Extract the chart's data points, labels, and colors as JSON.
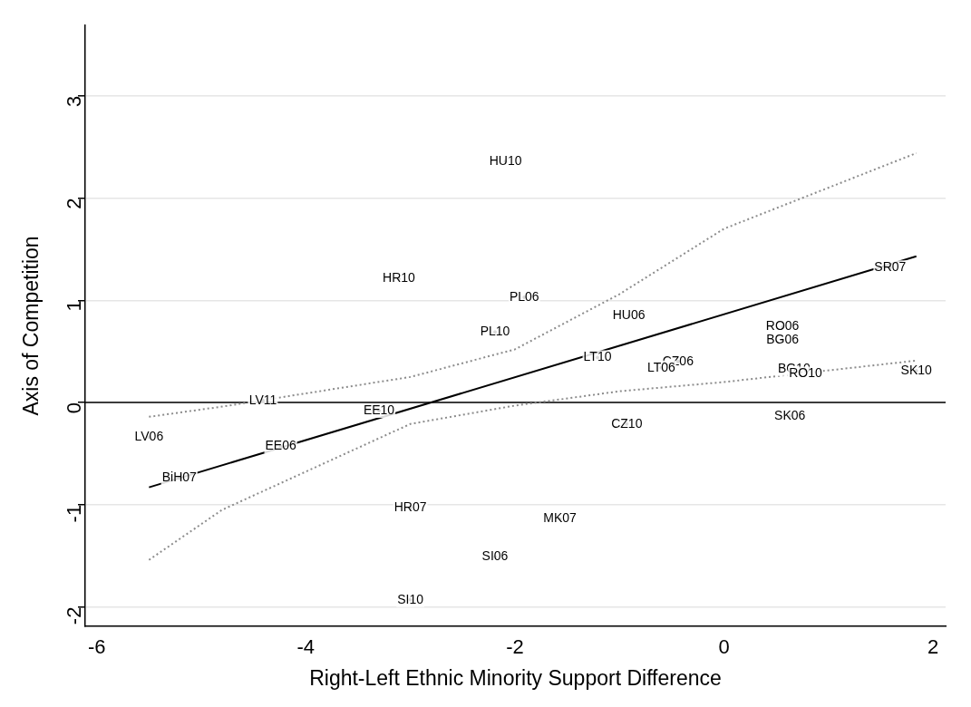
{
  "chart_data": {
    "type": "scatter",
    "xlabel": "Right-Left Ethnic Minority Support Difference",
    "ylabel": "Axis of Competition",
    "xlim": [
      -6.11,
      2.12
    ],
    "xticks": [
      -6,
      -4,
      -2,
      0,
      2
    ],
    "ylim": [
      -2.19,
      3.69
    ],
    "yticks": [
      -2,
      -1,
      0,
      1,
      2,
      3
    ],
    "grid": "y",
    "legend": false,
    "ref_lines": [
      {
        "axis": "y",
        "value": 0,
        "color": "#000000"
      }
    ],
    "series": [
      {
        "type": "scatter",
        "marker": "circle",
        "color": "#000000",
        "x": [
          -2.09,
          -3.11,
          -1.91,
          -0.91,
          -2.19,
          1.59,
          0.56,
          0.56,
          -1.21,
          -0.44,
          -0.6,
          0.67,
          0.78,
          1.84,
          -4.41,
          -3.3,
          0.63,
          -0.93,
          -5.5,
          -4.24,
          -5.21,
          -3.0,
          -1.57,
          -2.19,
          -3.0
        ],
        "values": [
          2.36,
          1.21,
          1.03,
          0.85,
          0.69,
          1.32,
          0.74,
          0.61,
          0.44,
          0.4,
          0.34,
          0.33,
          0.28,
          0.31,
          0.02,
          -0.08,
          -0.13,
          -0.21,
          -0.34,
          -0.43,
          -0.74,
          -1.03,
          -1.14,
          -1.51,
          -1.93
        ],
        "value_labels": [
          "HU10",
          "HR10",
          "PL06",
          "HU06",
          "PL10",
          "SR07",
          "RO06",
          "BG06",
          "LT10",
          "CZ06",
          "LT06",
          "BG10",
          "RO10",
          "SK10",
          "LV11",
          "EE10",
          "SK06",
          "CZ10",
          "LV06",
          "EE06",
          "BiH07",
          "HR07",
          "MK07",
          "SI06",
          "SI10"
        ]
      },
      {
        "type": "line",
        "marker": "none",
        "line_style": "solid",
        "color": "#000000",
        "x": [
          -5.5,
          1.84
        ],
        "values": [
          -0.83,
          1.43
        ]
      },
      {
        "type": "line",
        "marker": "none",
        "line_style": "dotted",
        "color": "#8c8c8c",
        "x": [
          -5.5,
          -4.8,
          -3,
          -2,
          -1,
          0,
          1.84
        ],
        "values": [
          -0.14,
          -0.04,
          0.25,
          0.52,
          1.06,
          1.7,
          2.44
        ]
      },
      {
        "type": "line",
        "marker": "none",
        "line_style": "dotted",
        "color": "#8c8c8c",
        "x": [
          -5.5,
          -4.8,
          -3,
          -2,
          -1,
          0,
          1.84
        ],
        "values": [
          -1.54,
          -1.05,
          -0.21,
          -0.03,
          0.11,
          0.2,
          0.41
        ]
      }
    ]
  }
}
